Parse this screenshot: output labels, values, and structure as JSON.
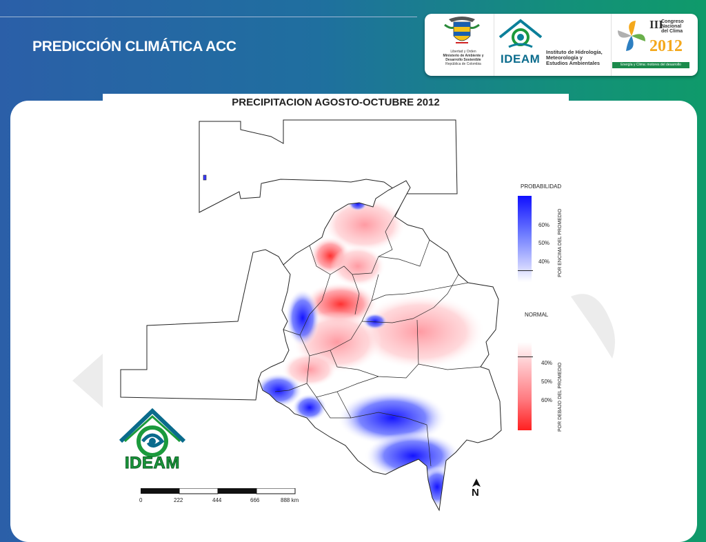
{
  "slide": {
    "title": "PREDICCIÓN CLIMÁTICA ACC"
  },
  "logos": {
    "mads_lines": [
      "Libertad y Orden",
      "Ministerio de Ambiente y",
      "Desarrollo Sostenible",
      "República de Colombia"
    ],
    "ideam_word": "IDEAM",
    "ideam_subtitle": [
      "Instituto de Hidrología,",
      "Meteorología y",
      "Estudios Ambientales"
    ],
    "congress_roman": "III",
    "congress_lines": [
      "Congreso",
      "Nacional",
      "del Clima"
    ],
    "congress_year": "2012",
    "congress_tagline": "Energía y Clima: motores del desarrollo económico"
  },
  "map": {
    "title": "PRECIPITACION  AGOSTO-OCTUBRE 2012",
    "legend": {
      "above_title": "PROBABILIDAD",
      "above_ticks": [
        "60%",
        "50%",
        "40%"
      ],
      "above_side_label": "POR ENCIMA DEL PROMEDIO",
      "normal_title": "NORMAL",
      "below_ticks": [
        "40%",
        "50%",
        "60%"
      ],
      "below_side_label": "POR DEBAJO DEL PROMEDIO"
    },
    "scale_labels": [
      "0",
      "222",
      "444",
      "666",
      "888 km"
    ],
    "north_label": "N",
    "logo_word": "IDEAM"
  },
  "colors": {
    "above_normal": "#1010ff",
    "below_normal": "#ff2020",
    "normal": "#ffffff"
  }
}
